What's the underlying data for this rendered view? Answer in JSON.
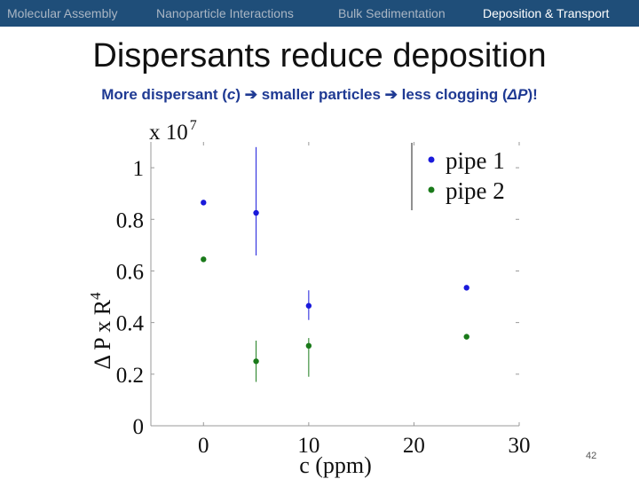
{
  "nav": {
    "items": [
      "Molecular Assembly",
      "Nanoparticle Interactions",
      "Bulk Sedimentation",
      "Deposition & Transport"
    ],
    "active_index": 3,
    "bg_color": "#1f4e79"
  },
  "slide": {
    "title": "Dispersants reduce deposition",
    "subtitle_parts": {
      "p1": "More dispersant (",
      "var_c": "c",
      "p2": ") ",
      "p3": " smaller particles ",
      "p4": " less clogging (",
      "var_dp": "ΔP",
      "p5": ")!"
    },
    "arrow_icon": "right-arrow-icon",
    "page_number": "42"
  },
  "chart_data": {
    "type": "scatter",
    "xlabel": "c (ppm)",
    "ylabel": "Δ P x R",
    "ylabel_superscript": "4",
    "y_multiplier": "x 10",
    "y_multiplier_exponent": "7",
    "xlim": [
      -5,
      30
    ],
    "ylim": [
      0,
      1.1
    ],
    "x_ticks": [
      0,
      10,
      20,
      30
    ],
    "y_ticks": [
      0,
      0.2,
      0.4,
      0.6,
      0.8,
      1
    ],
    "y_tick_labels": [
      "0",
      "0.2",
      "0.4",
      "0.6",
      "0.8",
      "1"
    ],
    "legend_position": "top-right",
    "series": [
      {
        "name": "pipe 1",
        "color": "#1a1adb",
        "points": [
          {
            "x": 0,
            "y": 0.865
          },
          {
            "x": 5,
            "y": 0.825,
            "err_lo": 0.66,
            "err_hi": 1.08
          },
          {
            "x": 10,
            "y": 0.465,
            "err_lo": 0.41,
            "err_hi": 0.525
          },
          {
            "x": 25,
            "y": 0.535
          }
        ]
      },
      {
        "name": "pipe 2",
        "color": "#1a7a1a",
        "points": [
          {
            "x": 0,
            "y": 0.645
          },
          {
            "x": 5,
            "y": 0.25,
            "err_lo": 0.17,
            "err_hi": 0.33
          },
          {
            "x": 10,
            "y": 0.31,
            "err_lo": 0.19,
            "err_hi": 0.34
          },
          {
            "x": 25,
            "y": 0.345
          }
        ]
      }
    ]
  }
}
